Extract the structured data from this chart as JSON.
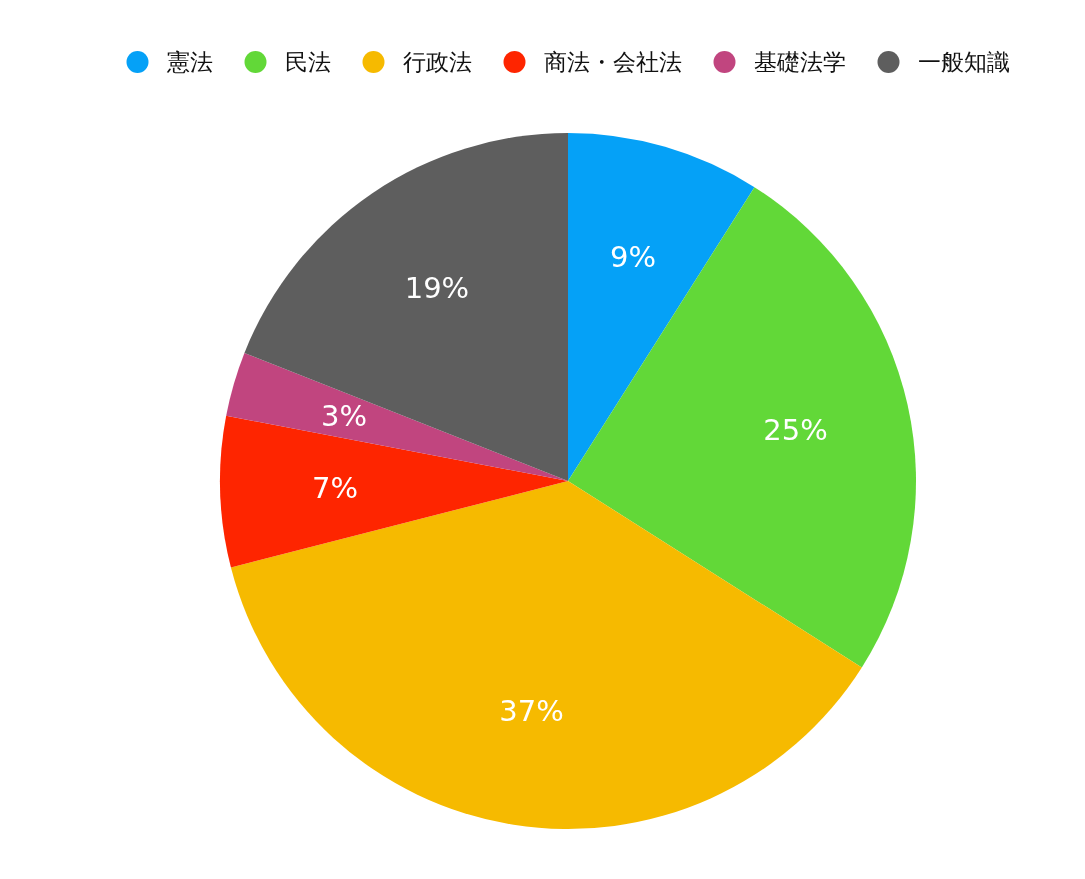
{
  "chart_data": {
    "type": "pie",
    "categories": [
      "憲法",
      "民法",
      "行政法",
      "商法・会社法",
      "基礎法学",
      "一般知識"
    ],
    "values": [
      9,
      25,
      37,
      7,
      3,
      19
    ],
    "colors": [
      "#05a1f7",
      "#62d838",
      "#f6ba00",
      "#fe2500",
      "#c1457f",
      "#5e5e5e"
    ],
    "value_labels": [
      "9%",
      "25%",
      "37%",
      "7%",
      "3%",
      "19%"
    ],
    "legend": "top"
  }
}
